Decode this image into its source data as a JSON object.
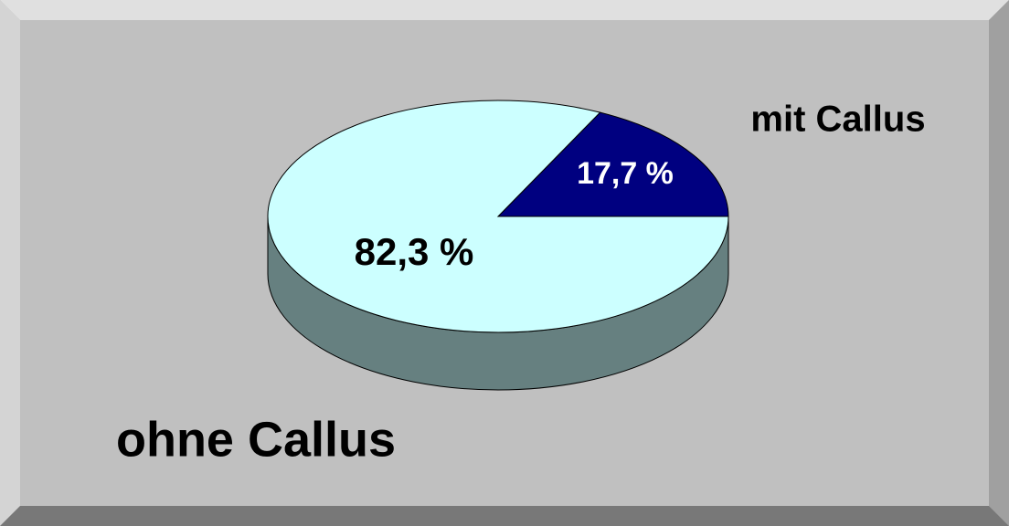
{
  "chart_data": {
    "type": "pie",
    "categories": [
      "mit Callus",
      "ohne Callus"
    ],
    "values": [
      17.7,
      82.3
    ],
    "value_labels": [
      "17,7 %",
      "82,3 %"
    ],
    "colors": [
      "#000080",
      "#ccffff"
    ]
  }
}
